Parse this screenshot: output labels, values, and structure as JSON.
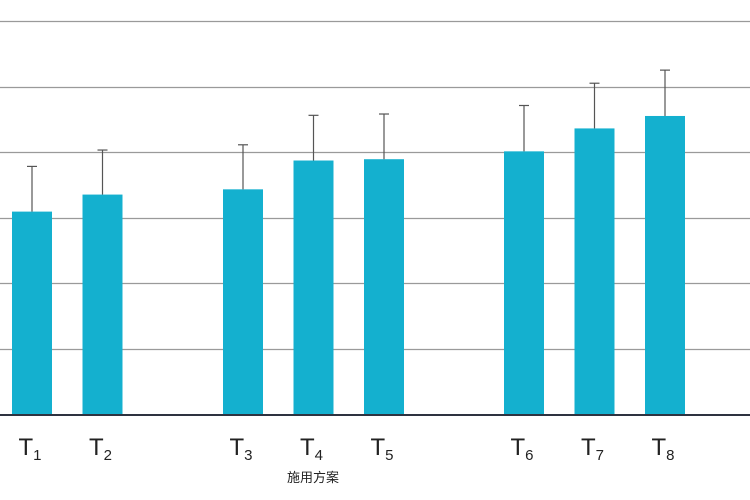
{
  "chart_data": {
    "type": "bar",
    "categories": [
      {
        "main": "T",
        "sub": "1"
      },
      {
        "main": "T",
        "sub": "2"
      },
      {
        "main": "T",
        "sub": "3"
      },
      {
        "main": "T",
        "sub": "4"
      },
      {
        "main": "T",
        "sub": "5"
      },
      {
        "main": "T",
        "sub": "6"
      },
      {
        "main": "T",
        "sub": "7"
      },
      {
        "main": "T",
        "sub": "8"
      }
    ],
    "groups": [
      [
        0,
        1
      ],
      [
        2,
        3,
        4
      ],
      [
        5,
        6,
        7
      ]
    ],
    "values": [
      3.09,
      3.35,
      3.43,
      3.87,
      3.89,
      4.01,
      4.36,
      4.55
    ],
    "errors": [
      0.69,
      0.68,
      0.68,
      0.69,
      0.69,
      0.7,
      0.69,
      0.7
    ],
    "ylim": [
      0,
      6
    ],
    "grid_step": 1,
    "grid": true,
    "title": "",
    "xlabel": "施用方案",
    "ylabel": "",
    "colors": {
      "bar": "#14b0cf",
      "grid": "#9a9a9a",
      "axis": "#2e3340",
      "error": "#555555"
    }
  }
}
